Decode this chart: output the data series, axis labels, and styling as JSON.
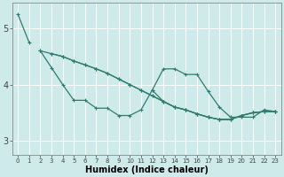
{
  "xlabel": "Humidex (Indice chaleur)",
  "bg_color": "#ceeaea",
  "grid_color": "#ffffff",
  "line_color": "#2e7d6e",
  "xlim": [
    -0.5,
    23.5
  ],
  "ylim": [
    2.75,
    5.45
  ],
  "xticks": [
    0,
    1,
    2,
    3,
    4,
    5,
    6,
    7,
    8,
    9,
    10,
    11,
    12,
    13,
    14,
    15,
    16,
    17,
    18,
    19,
    20,
    21,
    22,
    23
  ],
  "yticks": [
    3,
    4,
    5
  ],
  "s1": [
    5.25,
    4.75,
    null,
    null,
    null,
    null,
    null,
    null,
    null,
    null,
    null,
    null,
    null,
    null,
    null,
    null,
    null,
    null,
    null,
    null,
    null,
    null,
    null,
    null
  ],
  "s2": [
    null,
    null,
    4.6,
    4.55,
    4.5,
    4.42,
    4.35,
    4.28,
    4.2,
    4.1,
    4.0,
    3.9,
    3.8,
    3.7,
    3.6,
    3.55,
    3.48,
    3.42,
    3.38,
    3.38,
    3.45,
    3.5,
    3.52,
    3.52
  ],
  "s3": [
    null,
    null,
    4.6,
    4.3,
    4.0,
    3.72,
    3.72,
    3.58,
    3.58,
    3.45,
    3.45,
    3.55,
    3.9,
    4.28,
    4.28,
    4.18,
    4.18,
    3.88,
    3.6,
    3.42,
    3.42,
    3.42,
    3.55,
    3.52
  ],
  "s4": [
    null,
    null,
    null,
    4.55,
    4.5,
    4.42,
    4.35,
    4.28,
    4.2,
    4.1,
    4.0,
    3.9,
    3.8,
    3.7,
    3.6,
    3.55,
    3.48,
    3.42,
    3.38,
    3.38,
    3.45,
    3.5,
    3.52,
    3.52
  ],
  "s5": [
    null,
    null,
    null,
    null,
    null,
    null,
    null,
    null,
    null,
    null,
    null,
    null,
    3.9,
    3.7,
    3.6,
    3.55,
    3.48,
    3.42,
    3.38,
    3.38,
    3.45,
    3.5,
    3.52,
    3.52
  ]
}
